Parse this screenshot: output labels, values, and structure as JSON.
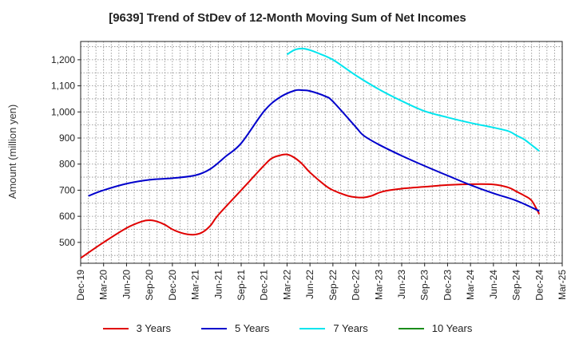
{
  "chart_data": {
    "type": "line",
    "title": "[9639]  Trend of StDev of 12-Month Moving Sum of Net Incomes",
    "ylabel": "Amount (million yen)",
    "xlabel": "",
    "ylim": [
      420,
      1270
    ],
    "yticks": [
      500,
      600,
      700,
      800,
      900,
      1000,
      1100,
      1200
    ],
    "ytick_labels": [
      "500",
      "600",
      "700",
      "800",
      "900",
      "1,000",
      "1,100",
      "1,200"
    ],
    "xticks": [
      "Dec-19",
      "Mar-20",
      "Jun-20",
      "Sep-20",
      "Dec-20",
      "Mar-21",
      "Jun-21",
      "Sep-21",
      "Dec-21",
      "Mar-22",
      "Jun-22",
      "Sep-22",
      "Dec-22",
      "Mar-23",
      "Jun-23",
      "Sep-23",
      "Dec-23",
      "Mar-24",
      "Jun-24",
      "Sep-24",
      "Dec-24",
      "Mar-25"
    ],
    "grid": true,
    "legend_position": "bottom",
    "series": [
      {
        "name": "3 Years",
        "color": "#e00000",
        "points": [
          [
            "Dec-19",
            440
          ],
          [
            "Mar-20",
            500
          ],
          [
            "Jun-20",
            555
          ],
          [
            "Aug-20",
            580
          ],
          [
            "Sep-20",
            585
          ],
          [
            "Oct-20",
            580
          ],
          [
            "Nov-20",
            568
          ],
          [
            "Dec-20",
            550
          ],
          [
            "Jan-21",
            538
          ],
          [
            "Feb-21",
            531
          ],
          [
            "Mar-21",
            530
          ],
          [
            "Apr-21",
            540
          ],
          [
            "May-21",
            565
          ],
          [
            "Jun-21",
            605
          ],
          [
            "Sep-21",
            700
          ],
          [
            "Dec-21",
            795
          ],
          [
            "Jan-22",
            822
          ],
          [
            "Feb-22",
            833
          ],
          [
            "Mar-22",
            837
          ],
          [
            "Apr-22",
            824
          ],
          [
            "May-22",
            800
          ],
          [
            "Jun-22",
            768
          ],
          [
            "Aug-22",
            718
          ],
          [
            "Sep-22",
            700
          ],
          [
            "Oct-22",
            688
          ],
          [
            "Nov-22",
            678
          ],
          [
            "Dec-22",
            673
          ],
          [
            "Jan-23",
            672
          ],
          [
            "Feb-23",
            678
          ],
          [
            "Mar-23",
            690
          ],
          [
            "Apr-23",
            698
          ],
          [
            "Jun-23",
            706
          ],
          [
            "Sep-23",
            713
          ],
          [
            "Dec-23",
            720
          ],
          [
            "Mar-24",
            723
          ],
          [
            "Jun-24",
            722
          ],
          [
            "Aug-24",
            710
          ],
          [
            "Sep-24",
            695
          ],
          [
            "Oct-24",
            680
          ],
          [
            "Nov-24",
            660
          ],
          [
            "Dec-24",
            608
          ]
        ]
      },
      {
        "name": "5 Years",
        "color": "#0000cc",
        "points": [
          [
            "Jan-20",
            678
          ],
          [
            "Mar-20",
            700
          ],
          [
            "Jun-20",
            725
          ],
          [
            "Sep-20",
            740
          ],
          [
            "Dec-20",
            746
          ],
          [
            "Mar-21",
            757
          ],
          [
            "May-21",
            782
          ],
          [
            "Jul-21",
            830
          ],
          [
            "Sep-21",
            880
          ],
          [
            "Dec-21",
            1003
          ],
          [
            "Feb-22",
            1055
          ],
          [
            "Apr-22",
            1082
          ],
          [
            "May-22",
            1083
          ],
          [
            "Jun-22",
            1080
          ],
          [
            "Aug-22",
            1060
          ],
          [
            "Sep-22",
            1040
          ],
          [
            "Dec-22",
            942
          ],
          [
            "Jan-23",
            910
          ],
          [
            "Mar-23",
            875
          ],
          [
            "Jun-23",
            832
          ],
          [
            "Sep-23",
            793
          ],
          [
            "Dec-23",
            756
          ],
          [
            "Mar-24",
            720
          ],
          [
            "Jun-24",
            688
          ],
          [
            "Sep-24",
            660
          ],
          [
            "Dec-24",
            620
          ]
        ]
      },
      {
        "name": "7 Years",
        "color": "#00e5ee",
        "points": [
          [
            "Mar-22",
            1220
          ],
          [
            "Apr-22",
            1238
          ],
          [
            "May-22",
            1243
          ],
          [
            "Jun-22",
            1237
          ],
          [
            "Jul-22",
            1226
          ],
          [
            "Sep-22",
            1200
          ],
          [
            "Dec-22",
            1140
          ],
          [
            "Mar-23",
            1087
          ],
          [
            "Jun-23",
            1042
          ],
          [
            "Sep-23",
            1003
          ],
          [
            "Dec-23",
            979
          ],
          [
            "Mar-24",
            958
          ],
          [
            "Jun-24",
            940
          ],
          [
            "Aug-24",
            926
          ],
          [
            "Sep-24",
            910
          ],
          [
            "Oct-24",
            895
          ],
          [
            "Nov-24",
            873
          ],
          [
            "Dec-24",
            850
          ]
        ]
      },
      {
        "name": "10 Years",
        "color": "#1a8c1a",
        "points": []
      }
    ]
  }
}
